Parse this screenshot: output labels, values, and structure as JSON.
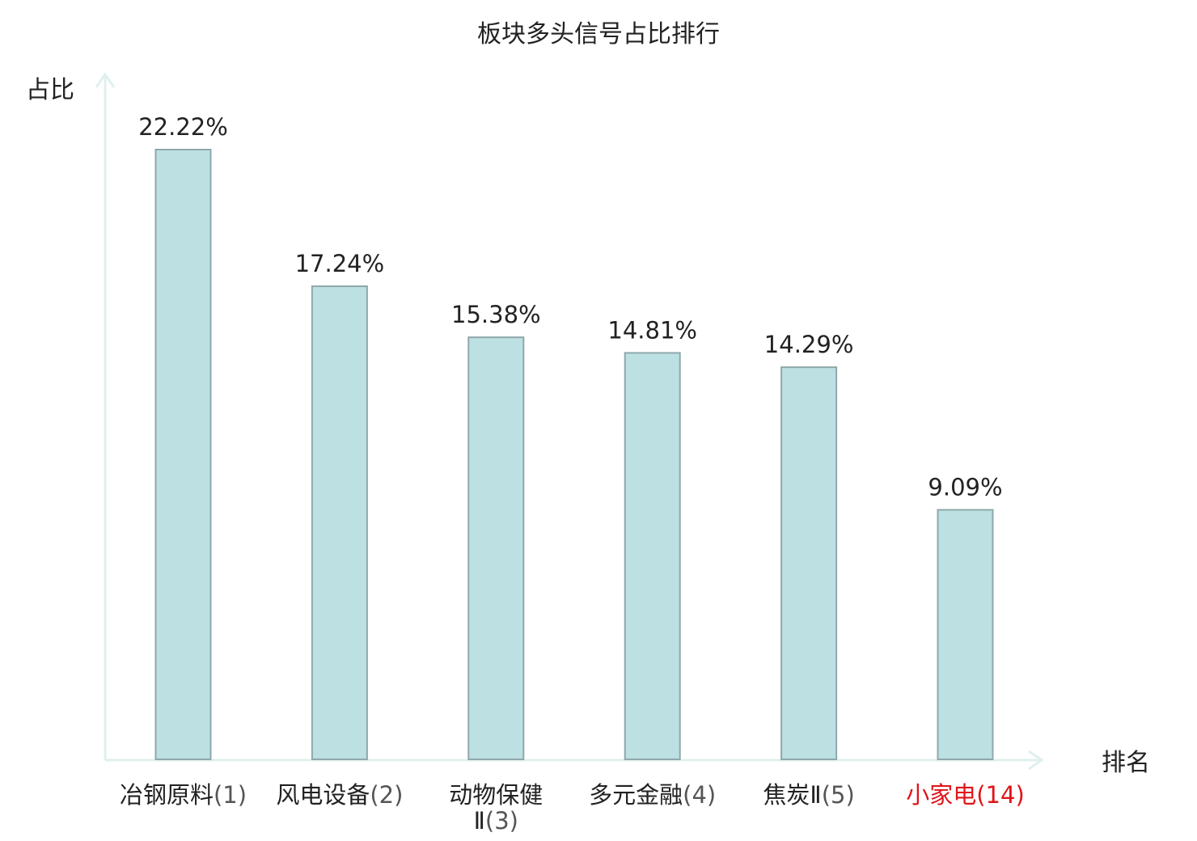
{
  "chart_data": {
    "type": "bar",
    "title": "板块多头信号占比排行",
    "ylabel": "占比",
    "xlabel": "排名",
    "categories": [
      {
        "name": "冶钢原料",
        "rank": "(1)",
        "highlight": false
      },
      {
        "name": "风电设备",
        "rank": "(2)",
        "highlight": false
      },
      {
        "name": "动物保健",
        "name_line2": "Ⅱ",
        "rank": "(3)",
        "highlight": false
      },
      {
        "name": "多元金融",
        "rank": "(4)",
        "highlight": false
      },
      {
        "name": "焦炭Ⅱ",
        "rank": "(5)",
        "highlight": false
      },
      {
        "name": "小家电",
        "rank": "(14)",
        "highlight": true
      }
    ],
    "values": [
      22.22,
      17.24,
      15.38,
      14.81,
      14.29,
      9.09
    ],
    "value_labels": [
      "22.22%",
      "17.24%",
      "15.38%",
      "14.81%",
      "14.29%",
      "9.09%"
    ],
    "ylim": [
      0,
      22.22
    ],
    "grid": false,
    "colors": {
      "bar_fill": "#bde0e3",
      "bar_stroke": "#8fa8aa",
      "axis": "#dff0ee",
      "text": "#222222",
      "highlight_text": "#e0141a"
    }
  }
}
